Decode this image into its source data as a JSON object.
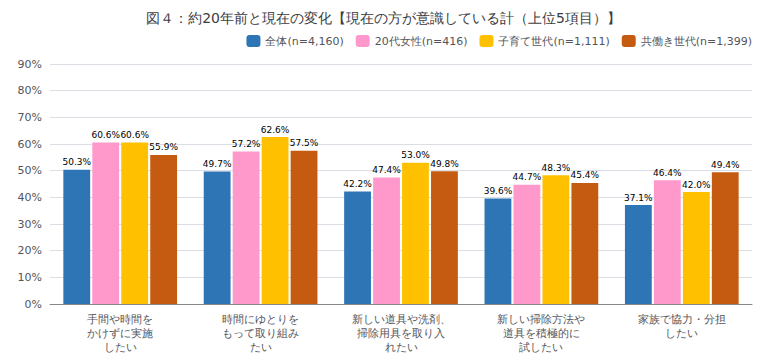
{
  "chart_data": {
    "type": "bar",
    "title": "図４：約20年前と現在の変化【現在の方が意識している計（上位5項目）】",
    "categories": [
      "手間や時間を\nかけずに実施\nしたい",
      "時間にゆとりを\nもって取り組み\nたい",
      "新しい道具や洗剤、\n掃除用具を取り入\nれたい",
      "新しい掃除方法や\n道具を積極的に\n試したい",
      "家族で協力・分担\nしたい"
    ],
    "series": [
      {
        "name": "全体(n=4,160)",
        "color": "#2E75B6",
        "values": [
          50.3,
          49.7,
          42.2,
          39.6,
          37.1
        ],
        "value_labels": [
          "50.3%",
          "49.7%",
          "42.2%",
          "39.6%",
          "37.1%"
        ]
      },
      {
        "name": "20代女性(n=416)",
        "color": "#FF99CC",
        "values": [
          60.6,
          57.2,
          47.4,
          44.7,
          46.4
        ],
        "value_labels": [
          "60.6%",
          "57.2%",
          "47.4%",
          "44.7%",
          "46.4%"
        ]
      },
      {
        "name": "子育て世代(n=1,111)",
        "color": "#FFC000",
        "values": [
          60.6,
          62.6,
          53.0,
          48.3,
          42.0
        ],
        "value_labels": [
          "60.6%",
          "62.6%",
          "53.0%",
          "48.3%",
          "42.0%"
        ]
      },
      {
        "name": "共働き世代(n=1,399)",
        "color": "#C55A11",
        "values": [
          55.9,
          57.5,
          49.8,
          45.4,
          49.4
        ],
        "value_labels": [
          "55.9%",
          "57.5%",
          "49.8%",
          "45.4%",
          "49.4%"
        ]
      }
    ],
    "ylim": [
      0,
      90
    ],
    "yticks": [
      {
        "value": 0,
        "label": "0%"
      },
      {
        "value": 10,
        "label": "10%"
      },
      {
        "value": 20,
        "label": "20%"
      },
      {
        "value": 30,
        "label": "30%"
      },
      {
        "value": 40,
        "label": "40%"
      },
      {
        "value": 50,
        "label": "50%"
      },
      {
        "value": 60,
        "label": "60%"
      },
      {
        "value": 70,
        "label": "70%"
      },
      {
        "value": 80,
        "label": "80%"
      },
      {
        "value": 90,
        "label": "90%"
      }
    ],
    "grid": true,
    "legend": "upper right",
    "data_labels": true
  }
}
